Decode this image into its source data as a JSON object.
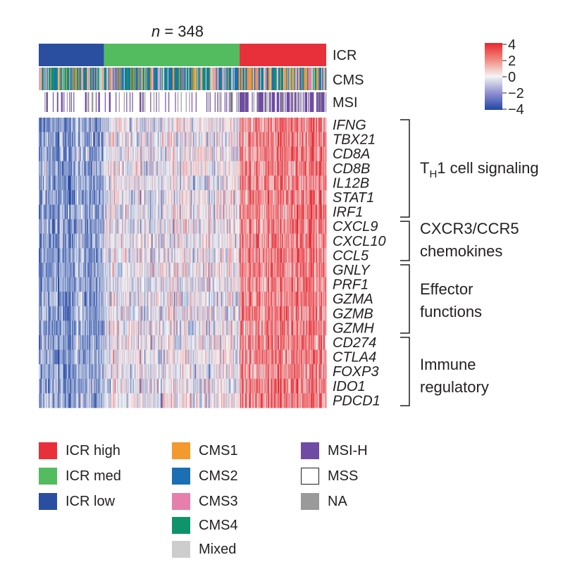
{
  "chart_data": {
    "type": "heatmap",
    "title": "n = 348",
    "title_parts": {
      "var": "n",
      "rest": " = 348"
    },
    "n_samples": 348,
    "genes": [
      "IFNG",
      "TBX21",
      "CD8A",
      "CD8B",
      "IL12B",
      "STAT1",
      "IRF1",
      "CXCL9",
      "CXCL10",
      "CCL5",
      "GNLY",
      "PRF1",
      "GZMA",
      "GZMB",
      "GZMH",
      "CD274",
      "CTLA4",
      "FOXP3",
      "IDO1",
      "PDCD1"
    ],
    "annotation_tracks": [
      {
        "name": "ICR"
      },
      {
        "name": "CMS"
      },
      {
        "name": "MSI"
      }
    ],
    "icr_groups": [
      {
        "name": "ICR low",
        "count": 79,
        "color": "#2a4fa0"
      },
      {
        "name": "ICR med",
        "count": 164,
        "color": "#52bc5f"
      },
      {
        "name": "ICR high",
        "count": 105,
        "color": "#e8303a"
      }
    ],
    "mean_z_by_group": {
      "ICR low": -1.8,
      "ICR med": -0.2,
      "ICR high": 2.2
    },
    "gene_groups": [
      {
        "label_main": "T",
        "label_sub": "H",
        "label_rest": "1 cell signaling",
        "genes": [
          "IFNG",
          "TBX21",
          "CD8A",
          "CD8B",
          "IL12B",
          "STAT1",
          "IRF1"
        ]
      },
      {
        "label_line1": "CXCR3/CCR5",
        "label_line2": "chemokines",
        "genes": [
          "CXCL9",
          "CXCL10",
          "CCL5"
        ]
      },
      {
        "label_line1": "Effector",
        "label_line2": "functions",
        "genes": [
          "GNLY",
          "PRF1",
          "GZMA",
          "GZMB",
          "GZMH"
        ]
      },
      {
        "label_line1": "Immune",
        "label_line2": "regulatory",
        "genes": [
          "CD274",
          "CTLA4",
          "FOXP3",
          "IDO1",
          "PDCD1"
        ]
      }
    ],
    "color_scale": {
      "range": [
        -4,
        4
      ],
      "ticks": [
        "4",
        "2",
        "0",
        "−2",
        "−4"
      ],
      "low_color": "#2046a6",
      "mid_color": "#f4f4f4",
      "high_color": "#e8262e"
    },
    "legend": {
      "icr": [
        {
          "label": "ICR high",
          "color": "#e8303a"
        },
        {
          "label": "ICR med",
          "color": "#52bc5f"
        },
        {
          "label": "ICR low",
          "color": "#2a4fa0"
        }
      ],
      "cms": [
        {
          "label": "CMS1",
          "color": "#f29a2e"
        },
        {
          "label": "CMS2",
          "color": "#1a6fb5"
        },
        {
          "label": "CMS3",
          "color": "#e67fab"
        },
        {
          "label": "CMS4",
          "color": "#0f936b"
        },
        {
          "label": "Mixed",
          "color": "#cdcdcd"
        }
      ],
      "msi": [
        {
          "label": "MSI-H",
          "color": "#6f4ba3"
        },
        {
          "label": "MSS",
          "color": "#ffffff"
        },
        {
          "label": "NA",
          "color": "#9a9a9a"
        }
      ]
    }
  }
}
